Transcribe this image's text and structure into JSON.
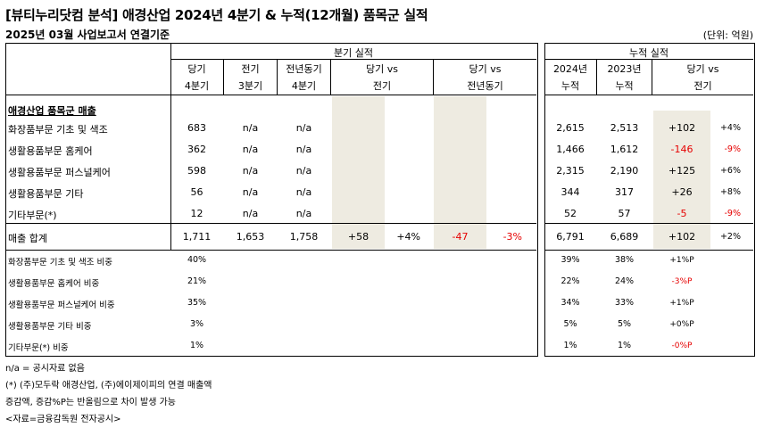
{
  "title": "[뷰티누리닷컴 분석] 애경산업 2024년 4분기 & 누적(12개월) 품목군 실적",
  "subtitle": "2025년 03월 사업보고서 연결기준",
  "unit": "(단위: 억원)",
  "left_table": {
    "group_header": "분기 실적",
    "headers": [
      {
        "line1": "당기",
        "line2": "4분기"
      },
      {
        "line1": "전기",
        "line2": "3분기"
      },
      {
        "line1": "전년동기",
        "line2": "4분기"
      },
      {
        "line1": "당기 vs",
        "line2": "전기"
      },
      {
        "line1": "당기 vs",
        "line2": "전년동기"
      }
    ],
    "section_label": "애경산업 품목군 매출",
    "rows": [
      {
        "label": "화장품부문 기초 및 색조",
        "cur": "683",
        "prev": "n/a",
        "yoy": "n/a",
        "qoq": "",
        "qoq_pct": "",
        "yoy_chg": "",
        "yoy_pct": ""
      },
      {
        "label": "생활용품부문 홈케어",
        "cur": "362",
        "prev": "n/a",
        "yoy": "n/a",
        "qoq": "",
        "qoq_pct": "",
        "yoy_chg": "",
        "yoy_pct": ""
      },
      {
        "label": "생활용품부문 퍼스널케어",
        "cur": "598",
        "prev": "n/a",
        "yoy": "n/a",
        "qoq": "",
        "qoq_pct": "",
        "yoy_chg": "",
        "yoy_pct": ""
      },
      {
        "label": "생활용품부문 기타",
        "cur": "56",
        "prev": "n/a",
        "yoy": "n/a",
        "qoq": "",
        "qoq_pct": "",
        "yoy_chg": "",
        "yoy_pct": ""
      },
      {
        "label": "기타부문(*)",
        "cur": "12",
        "prev": "n/a",
        "yoy": "n/a",
        "qoq": "",
        "qoq_pct": "",
        "yoy_chg": "",
        "yoy_pct": ""
      }
    ],
    "total": {
      "label": "매출 합계",
      "cur": "1,711",
      "prev": "1,653",
      "yoy": "1,758",
      "qoq": "+58",
      "qoq_pct": "+4%",
      "yoy_chg": "-47",
      "yoy_pct": "-3%"
    },
    "ratios": [
      {
        "label": "화장품부문 기초 및 색조 비중",
        "value": "40%"
      },
      {
        "label": "생활용품부문 홈케어 비중",
        "value": "21%"
      },
      {
        "label": "생활용품부문 퍼스널케어 비중",
        "value": "35%"
      },
      {
        "label": "생활용품부문 기타 비중",
        "value": "3%"
      },
      {
        "label": "기타부문(*) 비중",
        "value": "1%"
      }
    ]
  },
  "right_table": {
    "group_header": "누적 실적",
    "headers": [
      {
        "line1": "2024년",
        "line2": "누적"
      },
      {
        "line1": "2023년",
        "line2": "누적"
      },
      {
        "line1": "당기 vs",
        "line2": "전기"
      }
    ],
    "rows": [
      {
        "y2024": "2,615",
        "y2023": "2,513",
        "chg": "+102",
        "pct": "+4%"
      },
      {
        "y2024": "1,466",
        "y2023": "1,612",
        "chg": "-146",
        "pct": "-9%"
      },
      {
        "y2024": "2,315",
        "y2023": "2,190",
        "chg": "+125",
        "pct": "+6%"
      },
      {
        "y2024": "344",
        "y2023": "317",
        "chg": "+26",
        "pct": "+8%"
      },
      {
        "y2024": "52",
        "y2023": "57",
        "chg": "-5",
        "pct": "-9%"
      }
    ],
    "total": {
      "y2024": "6,791",
      "y2023": "6,689",
      "chg": "+102",
      "pct": "+2%"
    },
    "ratios": [
      {
        "y2024": "39%",
        "y2023": "38%",
        "chg": "+1%P"
      },
      {
        "y2024": "22%",
        "y2023": "24%",
        "chg": "-3%P"
      },
      {
        "y2024": "34%",
        "y2023": "33%",
        "chg": "+1%P"
      },
      {
        "y2024": "5%",
        "y2023": "5%",
        "chg": "+0%P"
      },
      {
        "y2024": "1%",
        "y2023": "1%",
        "chg": "-0%P"
      }
    ]
  },
  "footnotes": [
    "n/a = 공시자료 없음",
    "(*) (주)모두락 애경산업, (주)에이제이피의 연결 매출액",
    "증감액, 증감%P는 반올림으로 차이 발생 가능",
    "<자료=금융감독원 전자공시>"
  ],
  "colors": {
    "negative": "#e60000",
    "shade": "#eeebe1"
  }
}
